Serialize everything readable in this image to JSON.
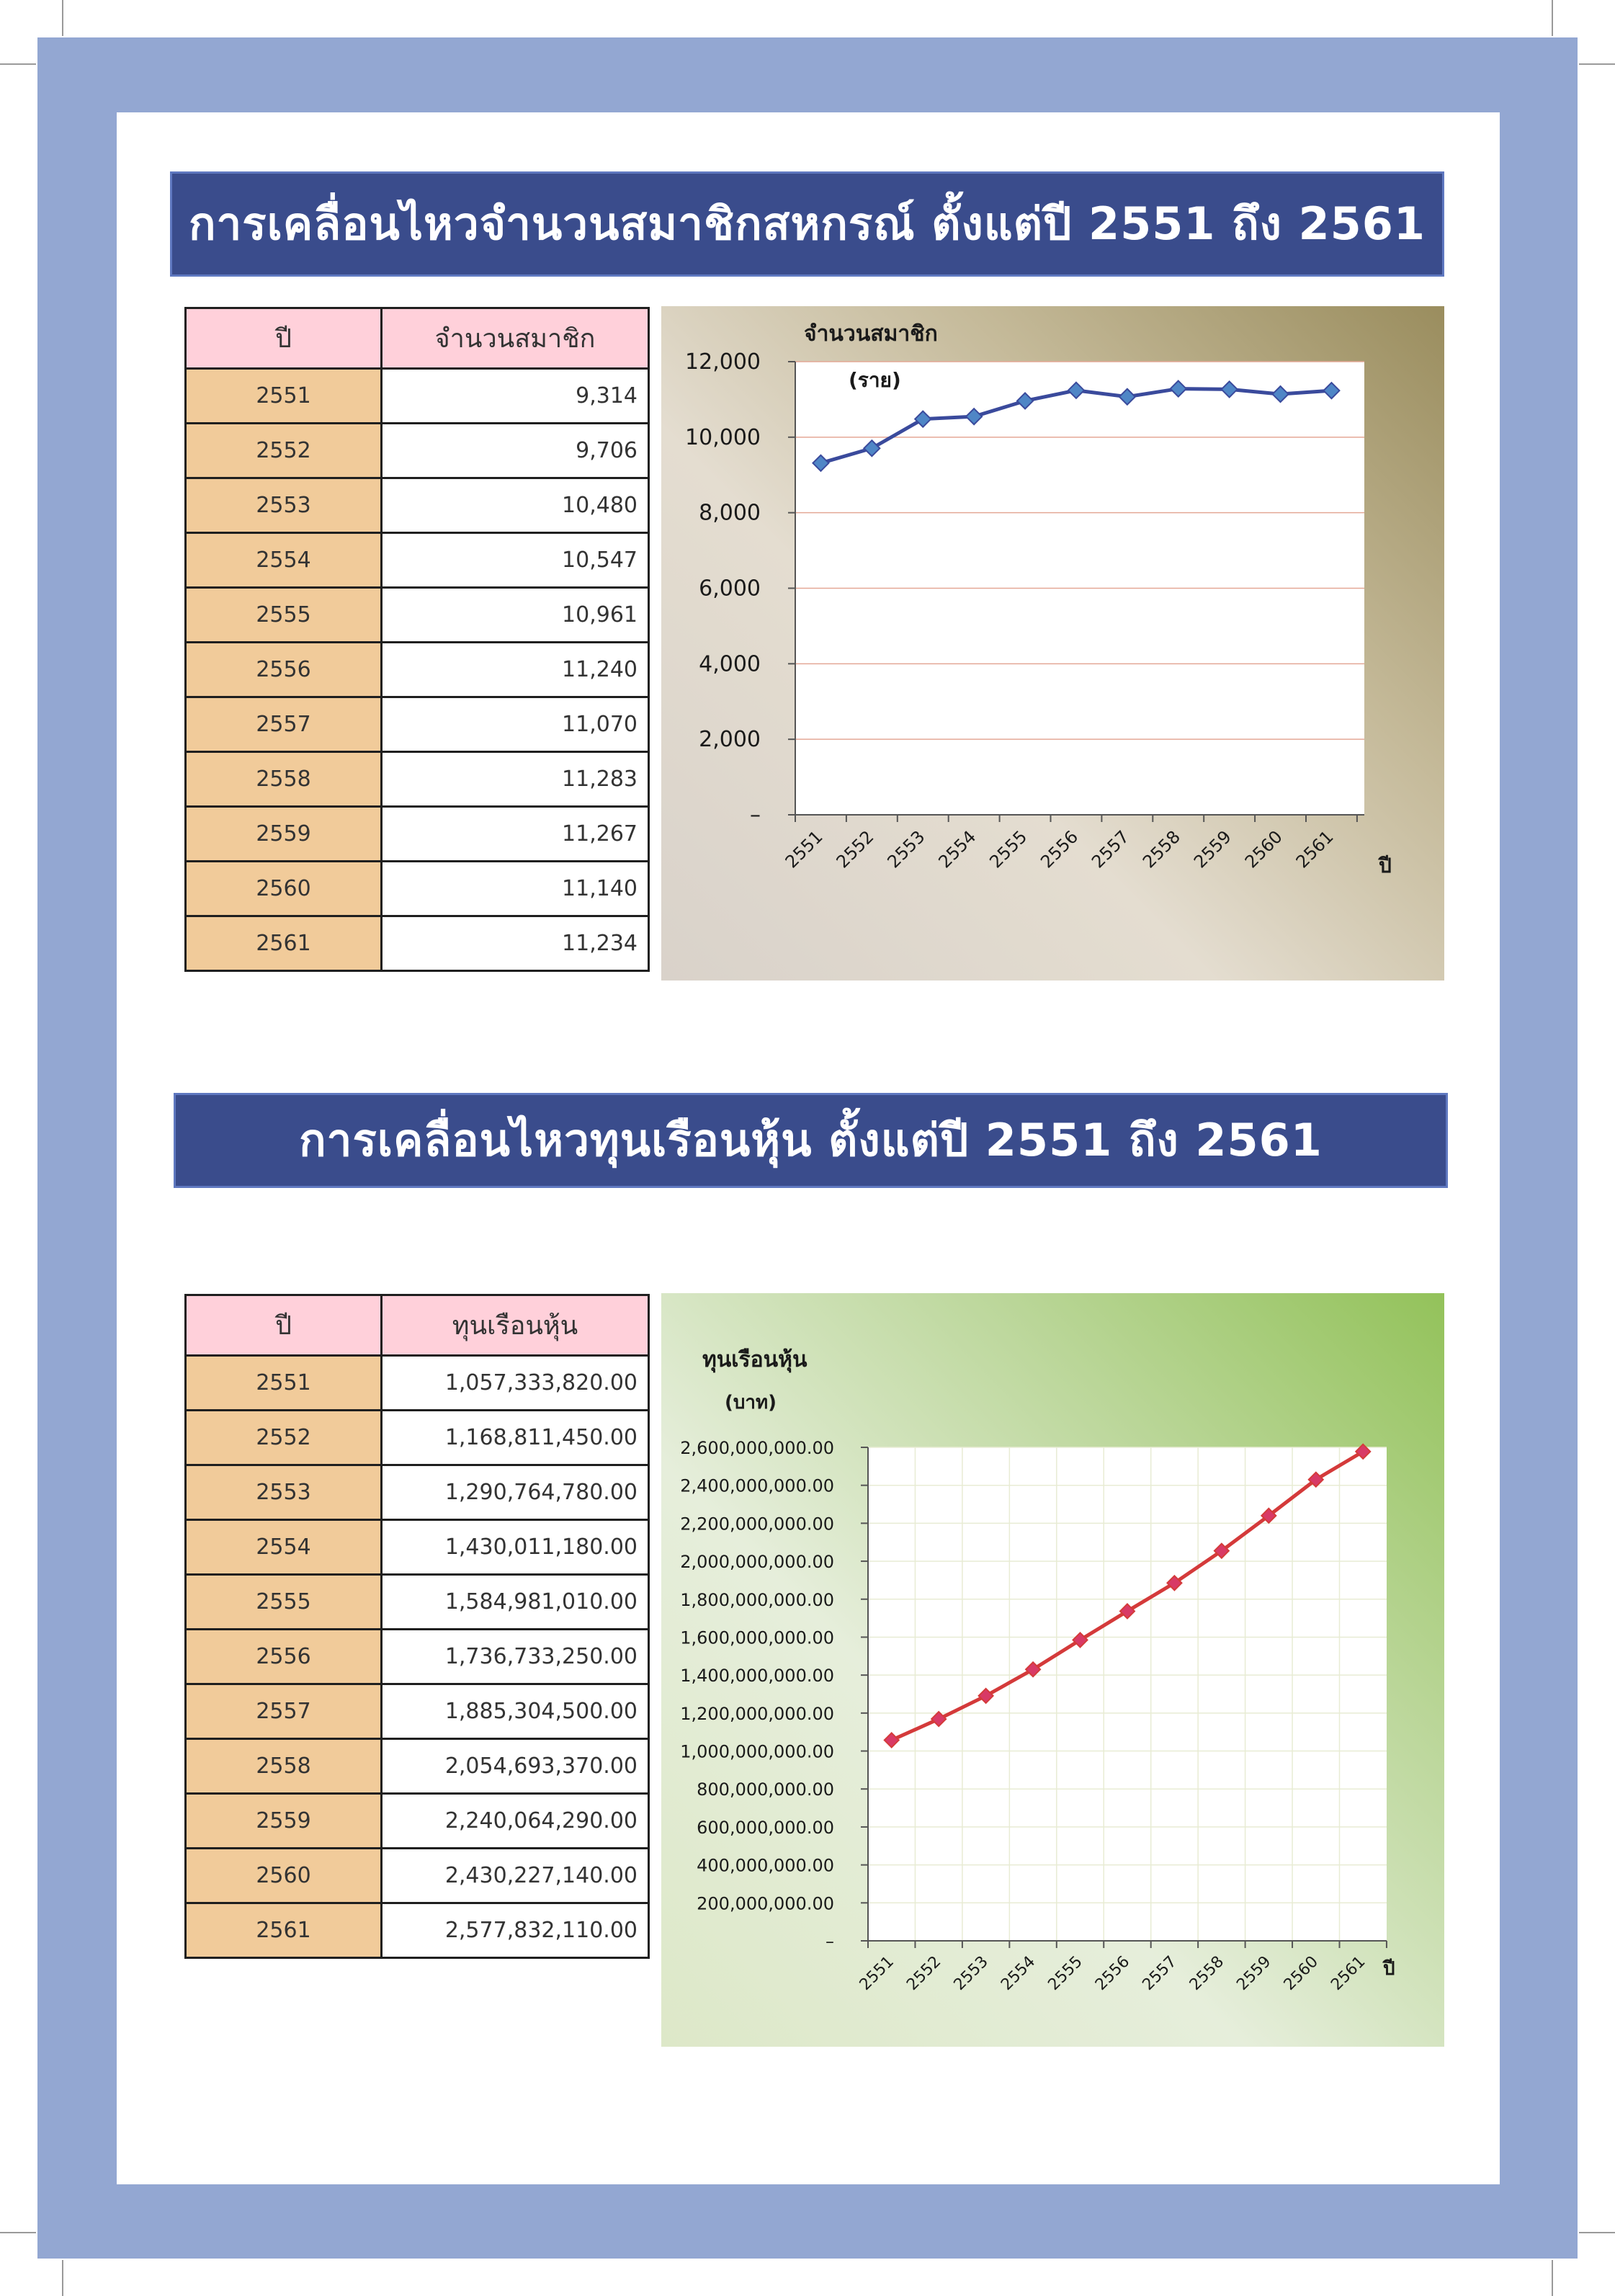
{
  "sections": [
    {
      "title": "การเคลื่อนไหวจำนวนสมาชิกสหกรณ์ ตั้งแต่ปี 2551 ถึง 2561",
      "table": {
        "headers": [
          "ปี",
          "จำนวนสมาชิก"
        ],
        "rows": [
          [
            "2551",
            "9,314"
          ],
          [
            "2552",
            "9,706"
          ],
          [
            "2553",
            "10,480"
          ],
          [
            "2554",
            "10,547"
          ],
          [
            "2555",
            "10,961"
          ],
          [
            "2556",
            "11,240"
          ],
          [
            "2557",
            "11,070"
          ],
          [
            "2558",
            "11,283"
          ],
          [
            "2559",
            "11,267"
          ],
          [
            "2560",
            "11,140"
          ],
          [
            "2561",
            "11,234"
          ]
        ]
      }
    },
    {
      "title": "การเคลื่อนไหวทุนเรือนหุ้น ตั้งแต่ปี 2551 ถึง 2561",
      "table": {
        "headers": [
          "ปี",
          "ทุนเรือนหุ้น"
        ],
        "rows": [
          [
            "2551",
            "1,057,333,820.00"
          ],
          [
            "2552",
            "1,168,811,450.00"
          ],
          [
            "2553",
            "1,290,764,780.00"
          ],
          [
            "2554",
            "1,430,011,180.00"
          ],
          [
            "2555",
            "1,584,981,010.00"
          ],
          [
            "2556",
            "1,736,733,250.00"
          ],
          [
            "2557",
            "1,885,304,500.00"
          ],
          [
            "2558",
            "2,054,693,370.00"
          ],
          [
            "2559",
            "2,240,064,290.00"
          ],
          [
            "2560",
            "2,430,227,140.00"
          ],
          [
            "2561",
            "2,577,832,110.00"
          ]
        ]
      }
    }
  ],
  "chart_data": [
    {
      "type": "line",
      "title": "จำนวนสมาชิก",
      "subtitle": "(ราย)",
      "xlabel": "ปี",
      "ylabel": "",
      "categories": [
        "2551",
        "2552",
        "2553",
        "2554",
        "2555",
        "2556",
        "2557",
        "2558",
        "2559",
        "2560",
        "2561"
      ],
      "series": [
        {
          "values": [
            9314,
            9706,
            10480,
            10547,
            10961,
            11240,
            11070,
            11283,
            11267,
            11140,
            11234
          ]
        }
      ],
      "ylim": [
        0,
        12000
      ],
      "yticks": [
        0,
        2000,
        4000,
        6000,
        8000,
        10000,
        12000
      ],
      "ytick_labels": [
        "–",
        "2,000",
        "4,000",
        "6,000",
        "8,000",
        "10,000",
        "12,000"
      ],
      "grid": "horizontal",
      "legend": "none",
      "colors": {
        "line": "#3a4a9c",
        "marker": "#4f86c6",
        "grid": "#e4a896",
        "plot_bg": "#ffffff"
      }
    },
    {
      "type": "line",
      "title": "ทุนเรือนหุ้น",
      "subtitle": "(บาท)",
      "xlabel": "ปี",
      "ylabel": "",
      "categories": [
        "2551",
        "2552",
        "2553",
        "2554",
        "2555",
        "2556",
        "2557",
        "2558",
        "2559",
        "2560",
        "2561"
      ],
      "series": [
        {
          "values": [
            1057333820,
            1168811450,
            1290764780,
            1430011180,
            1584981010,
            1736733250,
            1885304500,
            2054693370,
            2240064290,
            2430227140,
            2577832110
          ]
        }
      ],
      "ylim": [
        0,
        2600000000
      ],
      "yticks": [
        0,
        200000000,
        400000000,
        600000000,
        800000000,
        1000000000,
        1200000000,
        1400000000,
        1600000000,
        1800000000,
        2000000000,
        2200000000,
        2400000000,
        2600000000
      ],
      "ytick_labels": [
        "–",
        "200,000,000.00",
        "400,000,000.00",
        "600,000,000.00",
        "800,000,000.00",
        "1,000,000,000.00",
        "1,200,000,000.00",
        "1,400,000,000.00",
        "1,600,000,000.00",
        "1,800,000,000.00",
        "2,000,000,000.00",
        "2,200,000,000.00",
        "2,400,000,000.00",
        "2,600,000,000.00"
      ],
      "grid": "both",
      "legend": "none",
      "colors": {
        "line": "#d43a3a",
        "marker": "#d83a66",
        "grid": "#e8ecd4",
        "plot_bg": "#ffffff"
      }
    }
  ]
}
